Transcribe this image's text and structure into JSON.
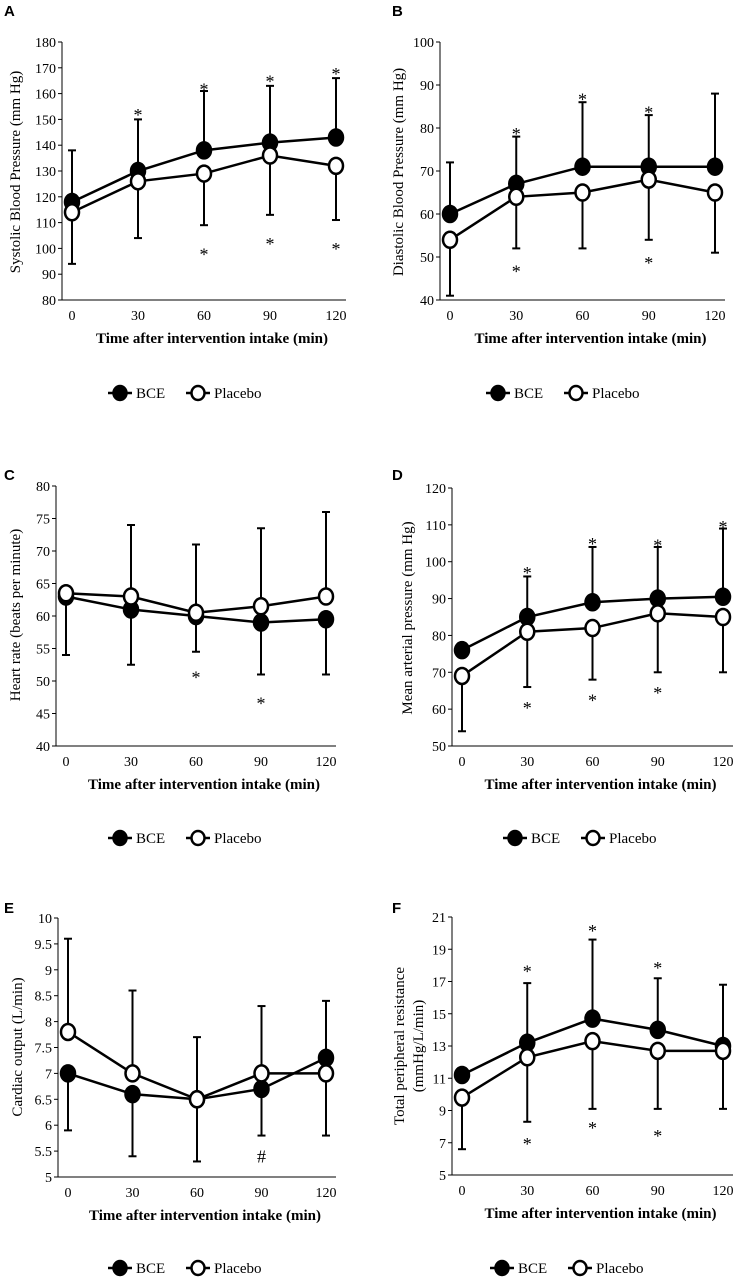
{
  "chart_data": [
    {
      "panel": "A",
      "type": "line",
      "ylabel": "Systolic Blood Pressure (mm Hg)",
      "xlabel": "Time after intervention intake (min)",
      "x": [
        0,
        30,
        60,
        90,
        120
      ],
      "ylim": [
        80,
        180
      ],
      "yticks": [
        80,
        90,
        100,
        110,
        120,
        130,
        140,
        150,
        160,
        170,
        180
      ],
      "series": [
        {
          "name": "BCE",
          "marker": "filled",
          "values": [
            118,
            130,
            138,
            141,
            143
          ],
          "err_up": [
            20,
            20,
            23,
            22,
            23
          ],
          "err_down": [
            0,
            0,
            0,
            0,
            0
          ]
        },
        {
          "name": "Placebo",
          "marker": "open",
          "values": [
            114,
            126,
            129,
            136,
            132
          ],
          "err_up": [
            0,
            0,
            0,
            0,
            0
          ],
          "err_down": [
            20,
            22,
            20,
            23,
            21
          ]
        }
      ],
      "annotations": [
        {
          "text": "*",
          "x": 30,
          "y": 154
        },
        {
          "text": "*",
          "x": 60,
          "y": 164
        },
        {
          "text": "*",
          "x": 90,
          "y": 167
        },
        {
          "text": "*",
          "x": 120,
          "y": 170
        },
        {
          "text": "*",
          "x": 60,
          "y": 100
        },
        {
          "text": "*",
          "x": 90,
          "y": 104
        },
        {
          "text": "*",
          "x": 120,
          "y": 102
        }
      ],
      "legend": [
        "BCE",
        "Placebo"
      ]
    },
    {
      "panel": "B",
      "type": "line",
      "ylabel": "Diastolic Blood Pressure (mm Hg)",
      "xlabel": "Time after intervention intake (min)",
      "x": [
        0,
        30,
        60,
        90,
        120
      ],
      "ylim": [
        40,
        100
      ],
      "yticks": [
        40,
        50,
        60,
        70,
        80,
        90,
        100
      ],
      "series": [
        {
          "name": "BCE",
          "marker": "filled",
          "values": [
            60,
            67,
            71,
            71,
            71
          ],
          "err_up": [
            12,
            11,
            15,
            12,
            17
          ],
          "err_down": [
            0,
            0,
            0,
            0,
            0
          ]
        },
        {
          "name": "Placebo",
          "marker": "open",
          "values": [
            54,
            64,
            65,
            68,
            65
          ],
          "err_up": [
            0,
            0,
            0,
            0,
            0
          ],
          "err_down": [
            13,
            12,
            13,
            14,
            14
          ]
        }
      ],
      "annotations": [
        {
          "text": "*",
          "x": 30,
          "y": 80
        },
        {
          "text": "*",
          "x": 60,
          "y": 88
        },
        {
          "text": "*",
          "x": 90,
          "y": 85
        },
        {
          "text": "*",
          "x": 30,
          "y": 48
        },
        {
          "text": "*",
          "x": 90,
          "y": 50
        }
      ],
      "legend": [
        "BCE",
        "Placebo"
      ]
    },
    {
      "panel": "C",
      "type": "line",
      "ylabel": "Heart rate (beats per minute)",
      "xlabel": "Time after intervention intake (min)",
      "x": [
        0,
        30,
        60,
        90,
        120
      ],
      "ylim": [
        40,
        80
      ],
      "yticks": [
        40,
        45,
        50,
        55,
        60,
        65,
        70,
        75,
        80
      ],
      "series": [
        {
          "name": "BCE",
          "marker": "filled",
          "values": [
            63,
            61,
            60,
            59,
            59.5
          ],
          "err_up": [
            0,
            0,
            0,
            0,
            0
          ],
          "err_down": [
            9,
            8.5,
            5.5,
            8,
            8.5
          ]
        },
        {
          "name": "Placebo",
          "marker": "open",
          "values": [
            63.5,
            63,
            60.5,
            61.5,
            63
          ],
          "err_up": [
            0,
            11,
            10.5,
            12,
            13
          ],
          "err_down": [
            0,
            0,
            0,
            0,
            0
          ]
        }
      ],
      "annotations": [
        {
          "text": "*",
          "x": 60,
          "y": 51.5
        },
        {
          "text": "*",
          "x": 90,
          "y": 47.5
        }
      ],
      "legend": [
        "BCE",
        "Placebo"
      ]
    },
    {
      "panel": "D",
      "type": "line",
      "ylabel": "Mean arterial pressure (mm Hg)",
      "xlabel": "Time after intervention intake (min)",
      "x": [
        0,
        30,
        60,
        90,
        120
      ],
      "ylim": [
        50,
        120
      ],
      "yticks": [
        50,
        60,
        70,
        80,
        90,
        100,
        110,
        120
      ],
      "series": [
        {
          "name": "BCE",
          "marker": "filled",
          "values": [
            76,
            85,
            89,
            90,
            90.5
          ],
          "err_up": [
            0,
            11,
            15,
            14,
            18.5
          ],
          "err_down": [
            0,
            0,
            0,
            0,
            0
          ]
        },
        {
          "name": "Placebo",
          "marker": "open",
          "values": [
            69,
            81,
            82,
            86,
            85
          ],
          "err_up": [
            0,
            0,
            0,
            0,
            0
          ],
          "err_down": [
            15,
            15,
            14,
            16,
            15
          ]
        }
      ],
      "annotations": [
        {
          "text": "*",
          "x": 30,
          "y": 98.5
        },
        {
          "text": "*",
          "x": 60,
          "y": 106.5
        },
        {
          "text": "*",
          "x": 90,
          "y": 106
        },
        {
          "text": "*",
          "x": 120,
          "y": 111
        },
        {
          "text": "*",
          "x": 30,
          "y": 62
        },
        {
          "text": "*",
          "x": 60,
          "y": 64
        },
        {
          "text": "*",
          "x": 90,
          "y": 66
        }
      ],
      "legend": [
        "BCE",
        "Placebo"
      ]
    },
    {
      "panel": "E",
      "type": "line",
      "ylabel": "Cardiac output (L/min)",
      "xlabel": "Time after intervention intake (min)",
      "x": [
        0,
        30,
        60,
        90,
        120
      ],
      "ylim": [
        5,
        10
      ],
      "yticks": [
        5,
        5.5,
        6,
        6.5,
        7,
        7.5,
        8,
        8.5,
        9,
        9.5,
        10
      ],
      "series": [
        {
          "name": "BCE",
          "marker": "filled",
          "values": [
            7.0,
            6.6,
            6.5,
            6.7,
            7.3
          ],
          "err_up": [
            0,
            0,
            0,
            0,
            1.1
          ],
          "err_down": [
            1.1,
            1.2,
            1.2,
            0.9,
            1.5
          ]
        },
        {
          "name": "Placebo",
          "marker": "open",
          "values": [
            7.8,
            7.0,
            6.5,
            7.0,
            7.0
          ],
          "err_up": [
            1.8,
            1.6,
            1.2,
            1.3,
            0
          ],
          "err_down": [
            0,
            0,
            0,
            0,
            0
          ]
        }
      ],
      "annotations": [
        {
          "text": "#",
          "x": 90,
          "y": 5.4
        }
      ],
      "legend": [
        "BCE",
        "Placebo"
      ]
    },
    {
      "panel": "F",
      "type": "line",
      "ylabel": [
        "Total peripheral resistance",
        "(mmHg/L/min)"
      ],
      "xlabel": "Time after intervention intake (min)",
      "x": [
        0,
        30,
        60,
        90,
        120
      ],
      "ylim": [
        5,
        21
      ],
      "yticks": [
        5,
        7,
        9,
        11,
        13,
        15,
        17,
        19,
        21
      ],
      "series": [
        {
          "name": "BCE",
          "marker": "filled",
          "values": [
            11.2,
            13.2,
            14.7,
            14.0,
            13.0
          ],
          "err_up": [
            0,
            3.7,
            4.9,
            3.2,
            3.8
          ],
          "err_down": [
            0,
            0,
            0,
            0,
            0
          ]
        },
        {
          "name": "Placebo",
          "marker": "open",
          "values": [
            9.8,
            12.3,
            13.3,
            12.7,
            12.7
          ],
          "err_up": [
            0,
            0,
            0,
            0,
            0
          ],
          "err_down": [
            3.2,
            4.0,
            4.2,
            3.6,
            3.6
          ]
        }
      ],
      "annotations": [
        {
          "text": "*",
          "x": 30,
          "y": 18
        },
        {
          "text": "*",
          "x": 60,
          "y": 20.5
        },
        {
          "text": "*",
          "x": 90,
          "y": 18.2
        },
        {
          "text": "*",
          "x": 30,
          "y": 7.3
        },
        {
          "text": "*",
          "x": 60,
          "y": 8.3
        },
        {
          "text": "*",
          "x": 90,
          "y": 7.8
        }
      ],
      "legend": [
        "BCE",
        "Placebo"
      ]
    }
  ]
}
